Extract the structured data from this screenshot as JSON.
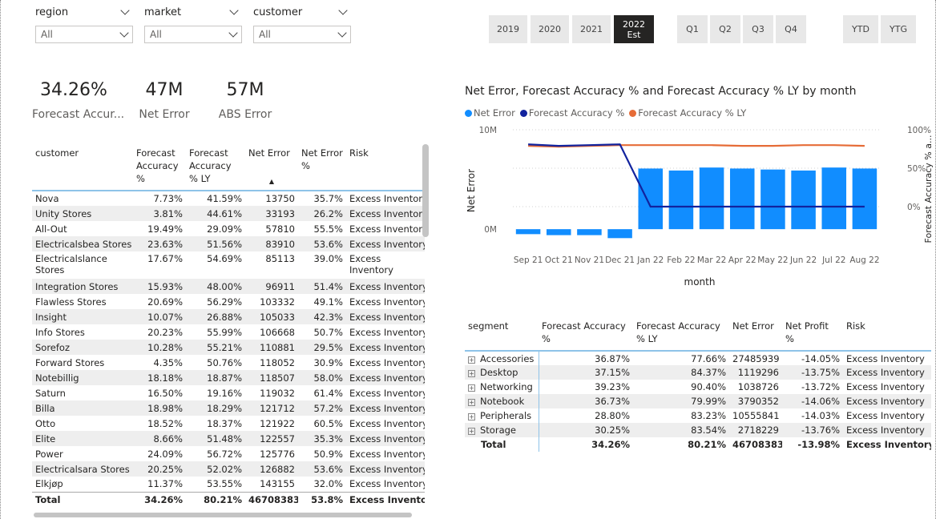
{
  "slicers": [
    {
      "title": "region",
      "value": "All"
    },
    {
      "title": "market",
      "value": "All"
    },
    {
      "title": "customer",
      "value": "All"
    }
  ],
  "years": [
    {
      "label": "2019"
    },
    {
      "label": "2020"
    },
    {
      "label": "2021"
    },
    {
      "label": "2022",
      "sub": "Est",
      "selected": true
    }
  ],
  "quarters": [
    "Q1",
    "Q2",
    "Q3",
    "Q4"
  ],
  "ytd_buttons": [
    "YTD",
    "YTG"
  ],
  "kpis": [
    {
      "value": "34.26%",
      "label": "Forecast Accur..."
    },
    {
      "value": "47M",
      "label": "Net Error"
    },
    {
      "value": "57M",
      "label": "ABS Error"
    }
  ],
  "customer_table": {
    "headers": [
      "customer",
      "Forecast Accuracy %",
      "Forecast Accuracy % LY",
      "Net Error",
      "Net Error %",
      "Risk"
    ],
    "rows": [
      [
        "Nova",
        "7.73%",
        "41.59%",
        "13750",
        "35.7%",
        "Excess Inventory"
      ],
      [
        "Unity Stores",
        "3.81%",
        "44.61%",
        "33193",
        "26.2%",
        "Excess Inventory"
      ],
      [
        "All-Out",
        "19.49%",
        "29.09%",
        "57810",
        "55.5%",
        "Excess Inventory"
      ],
      [
        "Electricalsbea Stores",
        "23.63%",
        "51.56%",
        "83910",
        "53.6%",
        "Excess Inventory"
      ],
      [
        "Electricalslance Stores",
        "17.67%",
        "54.69%",
        "85113",
        "39.0%",
        "Excess Inventory"
      ],
      [
        "Integration Stores",
        "15.93%",
        "48.00%",
        "96911",
        "51.4%",
        "Excess Inventory"
      ],
      [
        "Flawless Stores",
        "20.69%",
        "56.29%",
        "103332",
        "49.1%",
        "Excess Inventory"
      ],
      [
        "Insight",
        "10.07%",
        "26.88%",
        "105033",
        "42.3%",
        "Excess Inventory"
      ],
      [
        "Info Stores",
        "20.23%",
        "55.99%",
        "106668",
        "50.7%",
        "Excess Inventory"
      ],
      [
        "Sorefoz",
        "10.28%",
        "55.21%",
        "110881",
        "29.5%",
        "Excess Inventory"
      ],
      [
        "Forward Stores",
        "4.35%",
        "50.76%",
        "118052",
        "30.9%",
        "Excess Inventory"
      ],
      [
        "Notebillig",
        "18.18%",
        "18.87%",
        "118507",
        "58.0%",
        "Excess Inventory"
      ],
      [
        "Saturn",
        "16.50%",
        "19.16%",
        "119032",
        "61.4%",
        "Excess Inventory"
      ],
      [
        "Billa",
        "18.98%",
        "18.29%",
        "121712",
        "57.2%",
        "Excess Inventory"
      ],
      [
        "Otto",
        "18.52%",
        "18.37%",
        "121922",
        "60.5%",
        "Excess Inventory"
      ],
      [
        "Elite",
        "8.66%",
        "51.48%",
        "122557",
        "35.3%",
        "Excess Inventory"
      ],
      [
        "Power",
        "24.09%",
        "56.72%",
        "125776",
        "50.9%",
        "Excess Inventory"
      ],
      [
        "Electricalsara Stores",
        "20.25%",
        "52.02%",
        "126882",
        "53.6%",
        "Excess Inventory"
      ],
      [
        "Elkjøp",
        "11.37%",
        "53.55%",
        "143155",
        "32.0%",
        "Excess Inventory"
      ]
    ],
    "total": [
      "Total",
      "34.26%",
      "80.21%",
      "46708383",
      "53.8%",
      "Excess Inventory"
    ]
  },
  "chart_data": {
    "type": "bar",
    "title": "Net Error, Forecast Accuracy % and Forecast Accuracy % LY by month",
    "xlabel": "month",
    "ylabel": "Net Error",
    "y2label": "Forecast Accuracy % a...",
    "categories": [
      "Sep 21",
      "Oct 21",
      "Nov 21",
      "Dec 21",
      "Jan 22",
      "Feb 22",
      "Mar 22",
      "Apr 22",
      "May 22",
      "Jun 22",
      "Jul 22",
      "Aug 22"
    ],
    "yticks": [
      "10M",
      "0M"
    ],
    "y2ticks": [
      "100%",
      "50%",
      "0%"
    ],
    "ylim": [
      -1600000,
      10000000
    ],
    "y2lim": [
      -50,
      100
    ],
    "legend_position": "top-left",
    "series": [
      {
        "name": "Net Error",
        "type": "bar",
        "color": "#118DFF",
        "values": [
          -500000,
          -600000,
          -600000,
          -900000,
          6100000,
          5900000,
          6200000,
          6100000,
          6000000,
          5900000,
          6200000,
          6100000
        ]
      },
      {
        "name": "Forecast Accuracy %",
        "type": "line",
        "color": "#12239E",
        "values": [
          81,
          79,
          80,
          81,
          0,
          0,
          0,
          0,
          0,
          0,
          0,
          0
        ]
      },
      {
        "name": "Forecast Accuracy % LY",
        "type": "line",
        "color": "#E66C37",
        "values": [
          79,
          78,
          79,
          80,
          80,
          80,
          80,
          79,
          79,
          80,
          80,
          79
        ]
      }
    ]
  },
  "segment_table": {
    "headers": [
      "segment",
      "Forecast Accuracy %",
      "Forecast Accuracy % LY",
      "Net Error",
      "Net Profit %",
      "Risk"
    ],
    "rows": [
      [
        "Accessories",
        "36.87%",
        "77.66%",
        "27485939",
        "-14.05%",
        "Excess Inventory"
      ],
      [
        "Desktop",
        "37.15%",
        "84.37%",
        "1119296",
        "-13.75%",
        "Excess Inventory"
      ],
      [
        "Networking",
        "39.23%",
        "90.40%",
        "1038726",
        "-13.72%",
        "Excess Inventory"
      ],
      [
        "Notebook",
        "36.73%",
        "79.99%",
        "3790352",
        "-14.06%",
        "Excess Inventory"
      ],
      [
        "Peripherals",
        "28.80%",
        "83.23%",
        "10555841",
        "-14.03%",
        "Excess Inventory"
      ],
      [
        "Storage",
        "30.25%",
        "83.54%",
        "2718229",
        "-13.76%",
        "Excess Inventory"
      ]
    ],
    "total": [
      "Total",
      "34.26%",
      "80.21%",
      "46708383",
      "-13.98%",
      "Excess Inventory"
    ]
  }
}
